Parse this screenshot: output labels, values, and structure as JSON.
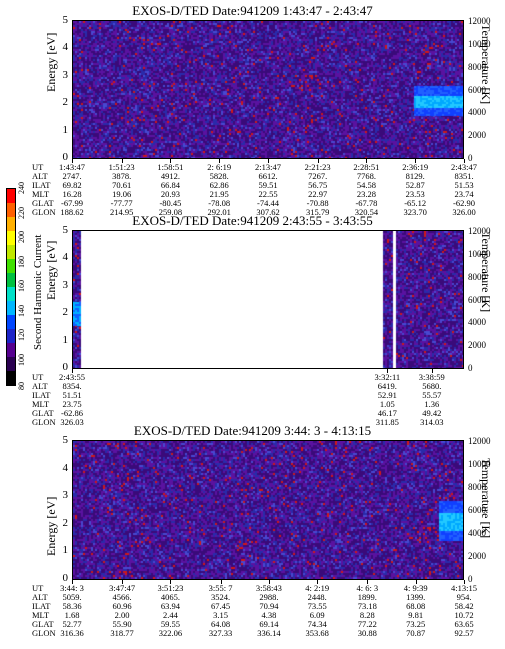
{
  "colorbar": {
    "label": "Second Harmonic Current",
    "ticks": [
      "80",
      "100",
      "120",
      "140",
      "160",
      "180",
      "200",
      "220",
      "240"
    ],
    "colors": [
      "#000000",
      "#2a0050",
      "#55008f",
      "#1c24c8",
      "#0046ff",
      "#00b7ff",
      "#00e0c8",
      "#00c040",
      "#40e000",
      "#c0e800",
      "#ffff00",
      "#ffb000",
      "#ff6000",
      "#ff0000"
    ]
  },
  "chart_data": [
    {
      "type": "heatmap",
      "title": "EXOS-D/TED   Date:941209   1:43:47 - 2:43:47",
      "ylabel": "Energy [eV]",
      "y2label": "Temperature [K]",
      "yticks": [
        "0",
        "1",
        "2",
        "3",
        "4",
        "5"
      ],
      "y2ticks": [
        "0",
        "2000",
        "4000",
        "6000",
        "8000",
        "10000",
        "12000"
      ],
      "ylim": [
        0,
        5
      ],
      "y2lim": [
        0,
        12000
      ],
      "ephemeris_labels": [
        "UT",
        "ALT",
        "ILAT",
        "MLT",
        "GLAT",
        "GLON"
      ],
      "ephemeris": [
        {
          "UT": "1:43:47",
          "ALT": "2747.",
          "ILAT": "69.82",
          "MLT": "16.28",
          "GLAT": "-67.99",
          "GLON": "188.62"
        },
        {
          "UT": "1:51:23",
          "ALT": "3878.",
          "ILAT": "70.61",
          "MLT": "19.06",
          "GLAT": "-77.77",
          "GLON": "214.95"
        },
        {
          "UT": "1:58:51",
          "ALT": "4912.",
          "ILAT": "66.84",
          "MLT": "20.93",
          "GLAT": "-80.45",
          "GLON": "259.08"
        },
        {
          "UT": "2: 6:19",
          "ALT": "5828.",
          "ILAT": "62.86",
          "MLT": "21.95",
          "GLAT": "-78.08",
          "GLON": "292.01"
        },
        {
          "UT": "2:13:47",
          "ALT": "6612.",
          "ILAT": "59.51",
          "MLT": "22.55",
          "GLAT": "-74.44",
          "GLON": "307.62"
        },
        {
          "UT": "2:21:23",
          "ALT": "7267.",
          "ILAT": "56.75",
          "MLT": "22.97",
          "GLAT": "-70.88",
          "GLON": "315.79"
        },
        {
          "UT": "2:28:51",
          "ALT": "7768.",
          "ILAT": "54.58",
          "MLT": "23.28",
          "GLAT": "-67.78",
          "GLON": "320.54"
        },
        {
          "UT": "2:36:19",
          "ALT": "8129.",
          "ILAT": "52.87",
          "MLT": "23.53",
          "GLAT": "-65.12",
          "GLON": "323.70"
        },
        {
          "UT": "2:43:47",
          "ALT": "8351.",
          "ILAT": "51.53",
          "MLT": "23.74",
          "GLAT": "-62.90",
          "GLON": "326.00"
        }
      ],
      "features": [
        {
          "label": "",
          "x_start": "2:36:19",
          "x_end": "2:43:47",
          "energy_range": [
            1.6,
            2.6
          ],
          "intensity": "enhanced"
        }
      ]
    },
    {
      "type": "heatmap",
      "title": "EXOS-D/TED   Date:941209   2:43:55 - 3:43:55",
      "ylabel": "Energy [eV]",
      "y2label": "Temperature [K]",
      "yticks": [
        "0",
        "1",
        "2",
        "3",
        "4",
        "5"
      ],
      "y2ticks": [
        "0",
        "2000",
        "4000",
        "6000",
        "8000",
        "10000",
        "12000"
      ],
      "ylim": [
        0,
        5
      ],
      "y2lim": [
        0,
        12000
      ],
      "ephemeris_labels": [
        "UT",
        "ALT",
        "ILAT",
        "MLT",
        "GLAT",
        "GLON"
      ],
      "ephemeris": [
        {
          "UT": "2:43:55",
          "ALT": "8354.",
          "ILAT": "51.51",
          "MLT": "23.75",
          "GLAT": "-62.86",
          "GLON": "326.03"
        },
        {
          "UT": "3:32:11",
          "ALT": "6419.",
          "ILAT": "52.91",
          "MLT": "1.05",
          "GLAT": "46.17",
          "GLON": "311.85"
        },
        {
          "UT": "3:38:59",
          "ALT": "5680.",
          "ILAT": "55.57",
          "MLT": "1.36",
          "GLAT": "49.42",
          "GLON": "314.03"
        }
      ],
      "data_intervals": [
        [
          "2:43:55",
          "2:45:00"
        ],
        [
          "3:31:40",
          "3:33:00"
        ],
        [
          "3:33:40",
          "3:43:55"
        ]
      ]
    },
    {
      "type": "heatmap",
      "title": "EXOS-D/TED   Date:941209   3:44: 3 - 4:13:15",
      "ylabel": "Energy [eV]",
      "y2label": "Temperature [K]",
      "yticks": [
        "0",
        "1",
        "2",
        "3",
        "4",
        "5"
      ],
      "y2ticks": [
        "0",
        "2000",
        "4000",
        "6000",
        "8000",
        "10000",
        "12000"
      ],
      "ylim": [
        0,
        5
      ],
      "y2lim": [
        0,
        12000
      ],
      "ephemeris_labels": [
        "UT",
        "ALT",
        "ILAT",
        "MLT",
        "GLAT",
        "GLON"
      ],
      "ephemeris": [
        {
          "UT": "3:44: 3",
          "ALT": "5059.",
          "ILAT": "58.36",
          "MLT": "1.68",
          "GLAT": "52.77",
          "GLON": "316.36"
        },
        {
          "UT": "3:47:47",
          "ALT": "4566.",
          "ILAT": "60.96",
          "MLT": "2.00",
          "GLAT": "55.90",
          "GLON": "318.77"
        },
        {
          "UT": "3:51:23",
          "ALT": "4065.",
          "ILAT": "63.94",
          "MLT": "2.44",
          "GLAT": "59.55",
          "GLON": "322.06"
        },
        {
          "UT": "3:55: 7",
          "ALT": "3524.",
          "ILAT": "67.45",
          "MLT": "3.15",
          "GLAT": "64.08",
          "GLON": "327.33"
        },
        {
          "UT": "3:58:43",
          "ALT": "2988.",
          "ILAT": "70.94",
          "MLT": "4.38",
          "GLAT": "69.14",
          "GLON": "336.14"
        },
        {
          "UT": "4: 2:19",
          "ALT": "2448.",
          "ILAT": "73.55",
          "MLT": "6.09",
          "GLAT": "74.34",
          "GLON": "353.68"
        },
        {
          "UT": "4: 6: 3",
          "ALT": "1899.",
          "ILAT": "73.18",
          "MLT": "8.28",
          "GLAT": "77.22",
          "GLON": "30.88"
        },
        {
          "UT": "4: 9:39",
          "ALT": "1399.",
          "ILAT": "68.08",
          "MLT": "9.81",
          "GLAT": "73.25",
          "GLON": "70.87"
        },
        {
          "UT": "4:13:15",
          "ALT": "954.",
          "ILAT": "58.42",
          "MLT": "10.72",
          "GLAT": "63.65",
          "GLON": "92.57"
        }
      ],
      "features": [
        {
          "label": "",
          "x_start": "4:11:30",
          "x_end": "4:13:15",
          "energy_range": [
            1.4,
            2.8
          ],
          "intensity": "enhanced"
        }
      ]
    }
  ]
}
